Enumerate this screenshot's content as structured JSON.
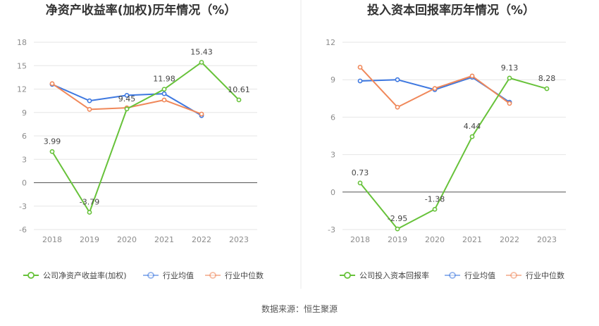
{
  "source_note": "数据来源：恒生聚源",
  "colors": {
    "company": "#67c23a",
    "industry_avg": "#3e78e0",
    "industry_median": "#f0885a",
    "grid": "#e6e6e6",
    "zero_axis": "#555555",
    "tick_text": "#8c8c8c",
    "title_text": "#333333",
    "divider": "#e8e8e8"
  },
  "chart_data": [
    {
      "type": "line",
      "title": "净资产收益率(加权)历年情况（%）",
      "categories": [
        "2018",
        "2019",
        "2020",
        "2021",
        "2022",
        "2023"
      ],
      "ylim": [
        -6,
        18
      ],
      "yticks": [
        -6,
        -3,
        0,
        3,
        6,
        9,
        12,
        15,
        18
      ],
      "grid": true,
      "legend_position": "bottom",
      "series": [
        {
          "key": "company",
          "name": "公司净资产收益率(加权)",
          "values": [
            3.99,
            -3.79,
            9.45,
            11.98,
            15.43,
            10.61
          ],
          "labels": [
            "3.99",
            "-3.79",
            "9.45",
            "11.98",
            "15.43",
            "10.61"
          ]
        },
        {
          "key": "industry_avg",
          "name": "行业均值",
          "values": [
            12.6,
            10.5,
            11.2,
            11.4,
            8.6,
            null
          ]
        },
        {
          "key": "industry_median",
          "name": "行业中位数",
          "values": [
            12.7,
            9.4,
            9.6,
            10.6,
            8.8,
            null
          ]
        }
      ]
    },
    {
      "type": "line",
      "title": "投入资本回报率历年情况（%）",
      "categories": [
        "2018",
        "2019",
        "2020",
        "2021",
        "2022",
        "2023"
      ],
      "ylim": [
        -3,
        12
      ],
      "yticks": [
        -3,
        0,
        3,
        6,
        9,
        12
      ],
      "grid": true,
      "legend_position": "bottom",
      "series": [
        {
          "key": "company",
          "name": "公司投入资本回报率",
          "values": [
            0.73,
            -2.95,
            -1.38,
            4.44,
            9.13,
            8.28
          ],
          "labels": [
            "0.73",
            "-2.95",
            "-1.38",
            "4.44",
            "9.13",
            "8.28"
          ]
        },
        {
          "key": "industry_avg",
          "name": "行业均值",
          "values": [
            8.9,
            9.0,
            8.2,
            9.2,
            7.2,
            null
          ]
        },
        {
          "key": "industry_median",
          "name": "行业中位数",
          "values": [
            10.0,
            6.8,
            8.3,
            9.3,
            7.1,
            null
          ]
        }
      ]
    }
  ]
}
